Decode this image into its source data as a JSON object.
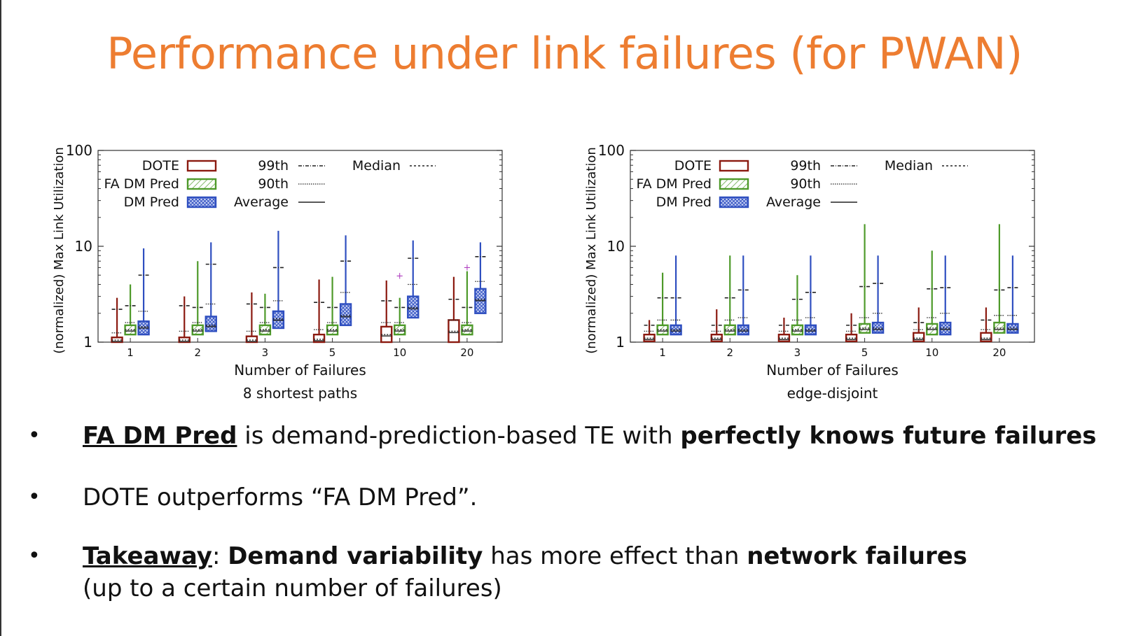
{
  "slide": {
    "title": "Performance under link failures (for PWAN)"
  },
  "bullets": [
    {
      "symbol": "•",
      "parts": [
        {
          "text": "FA DM Pred",
          "style": "bold-underline"
        },
        {
          "text": " is demand-prediction-based TE with ",
          "style": "normal"
        },
        {
          "text": "perfectly knows future failures",
          "style": "bold"
        }
      ]
    },
    {
      "symbol": "•",
      "parts": [
        {
          "text": "DOTE outperforms “FA DM Pred”.",
          "style": "normal"
        }
      ]
    },
    {
      "symbol": "•",
      "parts": [
        {
          "text": "Takeaway",
          "style": "bold-underline"
        },
        {
          "text": ": ",
          "style": "normal"
        },
        {
          "text": "Demand variability",
          "style": "bold"
        },
        {
          "text": " has more effect than ",
          "style": "normal"
        },
        {
          "text": "network failures",
          "style": "bold"
        }
      ],
      "continuation": "(up to a certain number of failures)"
    }
  ],
  "colors": {
    "title": "#ed7d31",
    "DOTE": "#8b1a10",
    "FA DM Pred": "#4e9a2a",
    "DM Pred": "#2f4fc0"
  },
  "chart_data": [
    {
      "type": "boxplot",
      "subtitle": "8 shortest paths",
      "xlabel": "Number of Failures",
      "ylabel": "(normalized) Max Link Utilization",
      "yscale": "log",
      "ylim": [
        1,
        100
      ],
      "yticks": [
        "1",
        "10",
        "100"
      ],
      "categories": [
        "1",
        "2",
        "3",
        "5",
        "10",
        "20"
      ],
      "legend_labels": [
        "DOTE",
        "FA DM Pred",
        "DM Pred",
        "99th",
        "90th",
        "Average",
        "Median"
      ],
      "series": [
        {
          "name": "DOTE",
          "boxes": [
            {
              "whisker_low": 1.0,
              "q1": 1.0,
              "median": 1.05,
              "q3": 1.12,
              "whisker_high": 2.9,
              "p99": 2.2,
              "p90": 1.25
            },
            {
              "whisker_low": 1.0,
              "q1": 1.0,
              "median": 1.05,
              "q3": 1.12,
              "whisker_high": 3.0,
              "p99": 2.4,
              "p90": 1.3
            },
            {
              "whisker_low": 1.0,
              "q1": 1.0,
              "median": 1.05,
              "q3": 1.15,
              "whisker_high": 3.3,
              "p99": 2.5,
              "p90": 1.3
            },
            {
              "whisker_low": 1.0,
              "q1": 1.0,
              "median": 1.07,
              "q3": 1.2,
              "whisker_high": 4.5,
              "p99": 2.6,
              "p90": 1.35
            },
            {
              "whisker_low": 1.0,
              "q1": 1.0,
              "median": 1.2,
              "q3": 1.45,
              "whisker_high": 4.4,
              "p99": 2.7,
              "p90": 1.6
            },
            {
              "whisker_low": 1.0,
              "q1": 1.0,
              "median": 1.3,
              "q3": 1.7,
              "whisker_high": 4.8,
              "p99": 2.8,
              "p90": 1.7
            }
          ]
        },
        {
          "name": "FA DM Pred",
          "boxes": [
            {
              "whisker_low": 1.0,
              "q1": 1.2,
              "median": 1.35,
              "q3": 1.5,
              "whisker_high": 4.0,
              "p99": 2.4,
              "p90": 1.6
            },
            {
              "whisker_low": 1.0,
              "q1": 1.2,
              "median": 1.35,
              "q3": 1.5,
              "whisker_high": 7.0,
              "p99": 2.3,
              "p90": 1.6
            },
            {
              "whisker_low": 1.0,
              "q1": 1.2,
              "median": 1.35,
              "q3": 1.5,
              "whisker_high": 3.2,
              "p99": 2.3,
              "p90": 1.6
            },
            {
              "whisker_low": 1.0,
              "q1": 1.2,
              "median": 1.35,
              "q3": 1.5,
              "whisker_high": 4.8,
              "p99": 2.3,
              "p90": 1.6
            },
            {
              "whisker_low": 1.0,
              "q1": 1.2,
              "median": 1.35,
              "q3": 1.5,
              "whisker_high": 2.9,
              "p99": 2.3,
              "p90": 1.6
            },
            {
              "whisker_low": 1.0,
              "q1": 1.2,
              "median": 1.35,
              "q3": 1.5,
              "whisker_high": 5.5,
              "p99": 2.3,
              "p90": 1.6
            }
          ],
          "outliers": [
            {
              "category": "10",
              "value": 4.9
            },
            {
              "category": "20",
              "value": 6.0
            }
          ]
        },
        {
          "name": "DM Pred",
          "boxes": [
            {
              "whisker_low": 1.0,
              "q1": 1.2,
              "median": 1.45,
              "q3": 1.65,
              "whisker_high": 9.5,
              "p99": 5.0,
              "p90": 2.1
            },
            {
              "whisker_low": 1.0,
              "q1": 1.3,
              "median": 1.5,
              "q3": 1.85,
              "whisker_high": 11.0,
              "p99": 6.5,
              "p90": 2.5
            },
            {
              "whisker_low": 1.0,
              "q1": 1.4,
              "median": 1.75,
              "q3": 2.1,
              "whisker_high": 14.5,
              "p99": 6.0,
              "p90": 2.7
            },
            {
              "whisker_low": 1.0,
              "q1": 1.5,
              "median": 1.9,
              "q3": 2.5,
              "whisker_high": 13.0,
              "p99": 7.0,
              "p90": 3.3
            },
            {
              "whisker_low": 1.0,
              "q1": 1.8,
              "median": 2.3,
              "q3": 3.0,
              "whisker_high": 11.5,
              "p99": 7.5,
              "p90": 4.0
            },
            {
              "whisker_low": 1.0,
              "q1": 2.0,
              "median": 2.8,
              "q3": 3.6,
              "whisker_high": 11.0,
              "p99": 7.8,
              "p90": 4.3
            }
          ]
        }
      ]
    },
    {
      "type": "boxplot",
      "subtitle": "edge-disjoint",
      "xlabel": "Number of Failures",
      "ylabel": "(normalized) Max Link Utilization",
      "yscale": "log",
      "ylim": [
        1,
        100
      ],
      "yticks": [
        "1",
        "10",
        "100"
      ],
      "categories": [
        "1",
        "2",
        "3",
        "5",
        "10",
        "20"
      ],
      "legend_labels": [
        "DOTE",
        "FA DM Pred",
        "DM Pred",
        "99th",
        "90th",
        "Average",
        "Median"
      ],
      "series": [
        {
          "name": "DOTE",
          "boxes": [
            {
              "whisker_low": 1.0,
              "q1": 1.02,
              "median": 1.1,
              "q3": 1.2,
              "whisker_high": 1.7,
              "p99": 1.5,
              "p90": 1.3
            },
            {
              "whisker_low": 1.0,
              "q1": 1.02,
              "median": 1.1,
              "q3": 1.2,
              "whisker_high": 2.2,
              "p99": 1.5,
              "p90": 1.3
            },
            {
              "whisker_low": 1.0,
              "q1": 1.02,
              "median": 1.1,
              "q3": 1.2,
              "whisker_high": 1.8,
              "p99": 1.5,
              "p90": 1.3
            },
            {
              "whisker_low": 1.0,
              "q1": 1.02,
              "median": 1.1,
              "q3": 1.2,
              "whisker_high": 2.0,
              "p99": 1.5,
              "p90": 1.3
            },
            {
              "whisker_low": 1.0,
              "q1": 1.02,
              "median": 1.1,
              "q3": 1.25,
              "whisker_high": 2.3,
              "p99": 1.6,
              "p90": 1.35
            },
            {
              "whisker_low": 1.0,
              "q1": 1.02,
              "median": 1.1,
              "q3": 1.25,
              "whisker_high": 2.3,
              "p99": 1.7,
              "p90": 1.35
            }
          ]
        },
        {
          "name": "FA DM Pred",
          "boxes": [
            {
              "whisker_low": 1.0,
              "q1": 1.2,
              "median": 1.35,
              "q3": 1.5,
              "whisker_high": 5.3,
              "p99": 2.9,
              "p90": 1.7
            },
            {
              "whisker_low": 1.0,
              "q1": 1.2,
              "median": 1.35,
              "q3": 1.5,
              "whisker_high": 8.0,
              "p99": 2.9,
              "p90": 1.7
            },
            {
              "whisker_low": 1.0,
              "q1": 1.2,
              "median": 1.35,
              "q3": 1.5,
              "whisker_high": 5.0,
              "p99": 2.8,
              "p90": 1.7
            },
            {
              "whisker_low": 1.0,
              "q1": 1.25,
              "median": 1.4,
              "q3": 1.55,
              "whisker_high": 17.0,
              "p99": 3.8,
              "p90": 1.8
            },
            {
              "whisker_low": 1.0,
              "q1": 1.2,
              "median": 1.4,
              "q3": 1.55,
              "whisker_high": 9.0,
              "p99": 3.6,
              "p90": 1.8
            },
            {
              "whisker_low": 1.0,
              "q1": 1.25,
              "median": 1.4,
              "q3": 1.6,
              "whisker_high": 17.0,
              "p99": 3.5,
              "p90": 1.9
            }
          ]
        },
        {
          "name": "DM Pred",
          "boxes": [
            {
              "whisker_low": 1.0,
              "q1": 1.2,
              "median": 1.35,
              "q3": 1.5,
              "whisker_high": 8.0,
              "p99": 2.9,
              "p90": 1.7
            },
            {
              "whisker_low": 1.0,
              "q1": 1.2,
              "median": 1.35,
              "q3": 1.5,
              "whisker_high": 8.0,
              "p99": 3.5,
              "p90": 1.8
            },
            {
              "whisker_low": 1.0,
              "q1": 1.2,
              "median": 1.35,
              "q3": 1.5,
              "whisker_high": 8.0,
              "p99": 3.3,
              "p90": 1.8
            },
            {
              "whisker_low": 1.0,
              "q1": 1.25,
              "median": 1.4,
              "q3": 1.6,
              "whisker_high": 8.0,
              "p99": 4.1,
              "p90": 2.0
            },
            {
              "whisker_low": 1.0,
              "q1": 1.2,
              "median": 1.4,
              "q3": 1.6,
              "whisker_high": 8.0,
              "p99": 3.7,
              "p90": 2.0
            },
            {
              "whisker_low": 1.0,
              "q1": 1.25,
              "median": 1.4,
              "q3": 1.55,
              "whisker_high": 8.0,
              "p99": 3.7,
              "p90": 1.9
            }
          ]
        }
      ]
    }
  ]
}
